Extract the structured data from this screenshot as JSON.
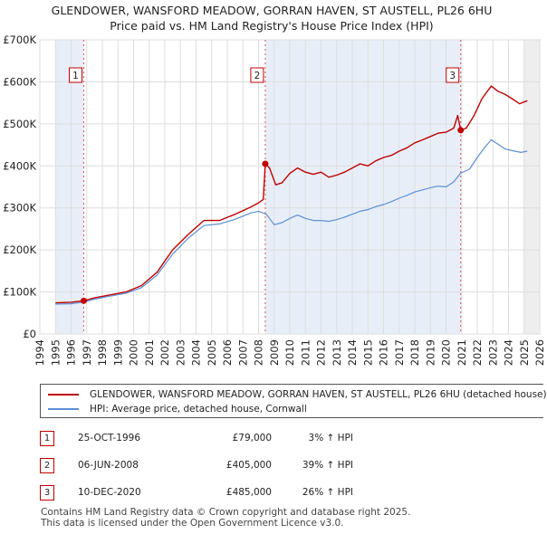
{
  "title": {
    "line1": "GLENDOWER, WANSFORD MEADOW, GORRAN HAVEN, ST AUSTELL, PL26 6HU",
    "line2": "Price paid vs. HM Land Registry's House Price Index (HPI)"
  },
  "chart_data": {
    "type": "line",
    "title": "GLENDOWER, WANSFORD MEADOW, GORRAN HAVEN, ST AUSTELL, PL26 6HU — Price paid vs. HM Land Registry's House Price Index (HPI)",
    "xlim": [
      1994,
      2026
    ],
    "ylim": [
      0,
      700000
    ],
    "x_ticks": [
      "1994",
      "1995",
      "1996",
      "1997",
      "1998",
      "1999",
      "2000",
      "2001",
      "2002",
      "2003",
      "2004",
      "2005",
      "2006",
      "2007",
      "2008",
      "2009",
      "2010",
      "2011",
      "2012",
      "2013",
      "2014",
      "2015",
      "2016",
      "2017",
      "2018",
      "2019",
      "2020",
      "2021",
      "2022",
      "2023",
      "2024",
      "2025",
      "2026"
    ],
    "y_ticks": [
      {
        "value": 0,
        "label": "£0"
      },
      {
        "value": 100000,
        "label": "£100K"
      },
      {
        "value": 200000,
        "label": "£200K"
      },
      {
        "value": 300000,
        "label": "£300K"
      },
      {
        "value": 400000,
        "label": "£400K"
      },
      {
        "value": 500000,
        "label": "£500K"
      },
      {
        "value": 600000,
        "label": "£600K"
      },
      {
        "value": 700000,
        "label": "£700K"
      }
    ],
    "series": [
      {
        "name": "GLENDOWER, WANSFORD MEADOW, GORRAN HAVEN, ST AUSTELL, PL26 6HU (detached house)",
        "color": "#c00000",
        "points": [
          [
            1995.0,
            74000
          ],
          [
            1996.0,
            75500
          ],
          [
            1996.81,
            79000
          ],
          [
            1997.5,
            86000
          ],
          [
            1998.5,
            93000
          ],
          [
            1999.5,
            100000
          ],
          [
            2000.5,
            115000
          ],
          [
            2001.5,
            147000
          ],
          [
            2002.5,
            200000
          ],
          [
            2003.5,
            237000
          ],
          [
            2004.5,
            270000
          ],
          [
            2005.5,
            270000
          ],
          [
            2006.5,
            285000
          ],
          [
            2007.5,
            302000
          ],
          [
            2008.0,
            312000
          ],
          [
            2008.3,
            320000
          ],
          [
            2008.43,
            405000
          ],
          [
            2008.7,
            395000
          ],
          [
            2009.1,
            355000
          ],
          [
            2009.5,
            360000
          ],
          [
            2010.0,
            382000
          ],
          [
            2010.5,
            395000
          ],
          [
            2011.0,
            385000
          ],
          [
            2011.5,
            380000
          ],
          [
            2012.0,
            385000
          ],
          [
            2012.5,
            373000
          ],
          [
            2013.0,
            378000
          ],
          [
            2013.5,
            385000
          ],
          [
            2014.0,
            395000
          ],
          [
            2014.5,
            405000
          ],
          [
            2015.0,
            400000
          ],
          [
            2015.5,
            412000
          ],
          [
            2016.0,
            420000
          ],
          [
            2016.5,
            425000
          ],
          [
            2017.0,
            435000
          ],
          [
            2017.5,
            443000
          ],
          [
            2018.0,
            455000
          ],
          [
            2018.5,
            462000
          ],
          [
            2019.0,
            470000
          ],
          [
            2019.5,
            478000
          ],
          [
            2020.0,
            480000
          ],
          [
            2020.5,
            490000
          ],
          [
            2020.75,
            520000
          ],
          [
            2020.94,
            485000
          ],
          [
            2021.3,
            490000
          ],
          [
            2021.8,
            520000
          ],
          [
            2022.3,
            560000
          ],
          [
            2022.6,
            575000
          ],
          [
            2022.9,
            590000
          ],
          [
            2023.3,
            578000
          ],
          [
            2023.8,
            570000
          ],
          [
            2024.3,
            558000
          ],
          [
            2024.7,
            548000
          ],
          [
            2025.2,
            555000
          ]
        ]
      },
      {
        "name": "HPI: Average price, detached house, Cornwall",
        "color": "#5b8fd6",
        "points": [
          [
            1995.0,
            71000
          ],
          [
            1996.0,
            72000
          ],
          [
            1996.81,
            76000
          ],
          [
            1997.5,
            83000
          ],
          [
            1998.5,
            90000
          ],
          [
            1999.5,
            97000
          ],
          [
            2000.5,
            110000
          ],
          [
            2001.5,
            140000
          ],
          [
            2002.5,
            190000
          ],
          [
            2003.5,
            228000
          ],
          [
            2004.5,
            258000
          ],
          [
            2005.5,
            262000
          ],
          [
            2006.5,
            273000
          ],
          [
            2007.5,
            288000
          ],
          [
            2008.0,
            292000
          ],
          [
            2008.5,
            285000
          ],
          [
            2009.0,
            260000
          ],
          [
            2009.5,
            265000
          ],
          [
            2010.0,
            275000
          ],
          [
            2010.5,
            283000
          ],
          [
            2011.0,
            275000
          ],
          [
            2011.5,
            270000
          ],
          [
            2012.0,
            270000
          ],
          [
            2012.5,
            268000
          ],
          [
            2013.0,
            272000
          ],
          [
            2013.5,
            278000
          ],
          [
            2014.0,
            285000
          ],
          [
            2014.5,
            292000
          ],
          [
            2015.0,
            296000
          ],
          [
            2015.5,
            303000
          ],
          [
            2016.0,
            308000
          ],
          [
            2016.5,
            315000
          ],
          [
            2017.0,
            323000
          ],
          [
            2017.5,
            330000
          ],
          [
            2018.0,
            338000
          ],
          [
            2018.5,
            343000
          ],
          [
            2019.0,
            348000
          ],
          [
            2019.5,
            352000
          ],
          [
            2020.0,
            350000
          ],
          [
            2020.5,
            362000
          ],
          [
            2020.94,
            383000
          ],
          [
            2021.5,
            392000
          ],
          [
            2022.0,
            420000
          ],
          [
            2022.5,
            445000
          ],
          [
            2022.9,
            462000
          ],
          [
            2023.4,
            450000
          ],
          [
            2023.8,
            440000
          ],
          [
            2024.4,
            435000
          ],
          [
            2024.8,
            432000
          ],
          [
            2025.2,
            435000
          ]
        ]
      }
    ],
    "sales": [
      {
        "label": "1",
        "x": 1996.81,
        "price": 79000
      },
      {
        "label": "2",
        "x": 2008.43,
        "price": 405000
      },
      {
        "label": "3",
        "x": 2020.94,
        "price": 485000
      }
    ]
  },
  "legend": {
    "property_label": "GLENDOWER, WANSFORD MEADOW, GORRAN HAVEN, ST AUSTELL, PL26 6HU (detached house)",
    "hpi_label": "HPI: Average price, detached house, Cornwall"
  },
  "sales_table": [
    {
      "num": "1",
      "date": "25-OCT-1996",
      "price": "£79,000",
      "hpi": "3% ↑ HPI"
    },
    {
      "num": "2",
      "date": "06-JUN-2008",
      "price": "£405,000",
      "hpi": "39% ↑ HPI"
    },
    {
      "num": "3",
      "date": "10-DEC-2020",
      "price": "£485,000",
      "hpi": "26% ↑ HPI"
    }
  ],
  "footer": {
    "line1": "Contains HM Land Registry data © Crown copyright and database right 2025.",
    "line2": "This data is licensed under the Open Government Licence v3.0."
  },
  "colors": {
    "property": "#c00000",
    "hpi": "#5b8fd6",
    "shade": "#e8eef8",
    "grid": "#dddddd"
  }
}
